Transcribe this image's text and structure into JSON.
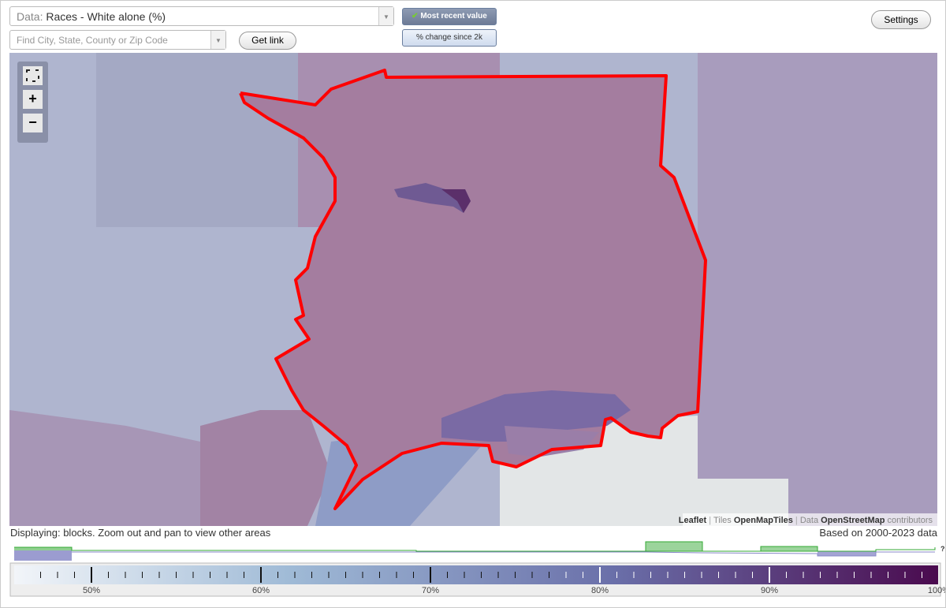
{
  "header": {
    "data_label": "Data:",
    "data_value": "Races - White alone (%)",
    "search_placeholder": "Find City, State, County or Zip Code",
    "get_link": "Get link",
    "most_recent": "Most recent value",
    "change": "% change since 2k",
    "settings": "Settings"
  },
  "map": {
    "attribution": {
      "leaflet": "Leaflet",
      "sep1": "|",
      "tiles": "Tiles",
      "tiles_source": "OpenMapTiles",
      "sep2": "|",
      "data": "Data",
      "data_source": "OpenStreetMap",
      "contributors": "contributors"
    },
    "zoom_in": "+",
    "zoom_out": "−"
  },
  "footer": {
    "displaying": "Displaying: blocks. Zoom out and pan to view other areas",
    "based_on": "Based on 2000-2023 data",
    "help": "?"
  },
  "legend": {
    "labels": [
      "50%",
      "60%",
      "70%",
      "80%",
      "90%",
      "100%"
    ]
  }
}
